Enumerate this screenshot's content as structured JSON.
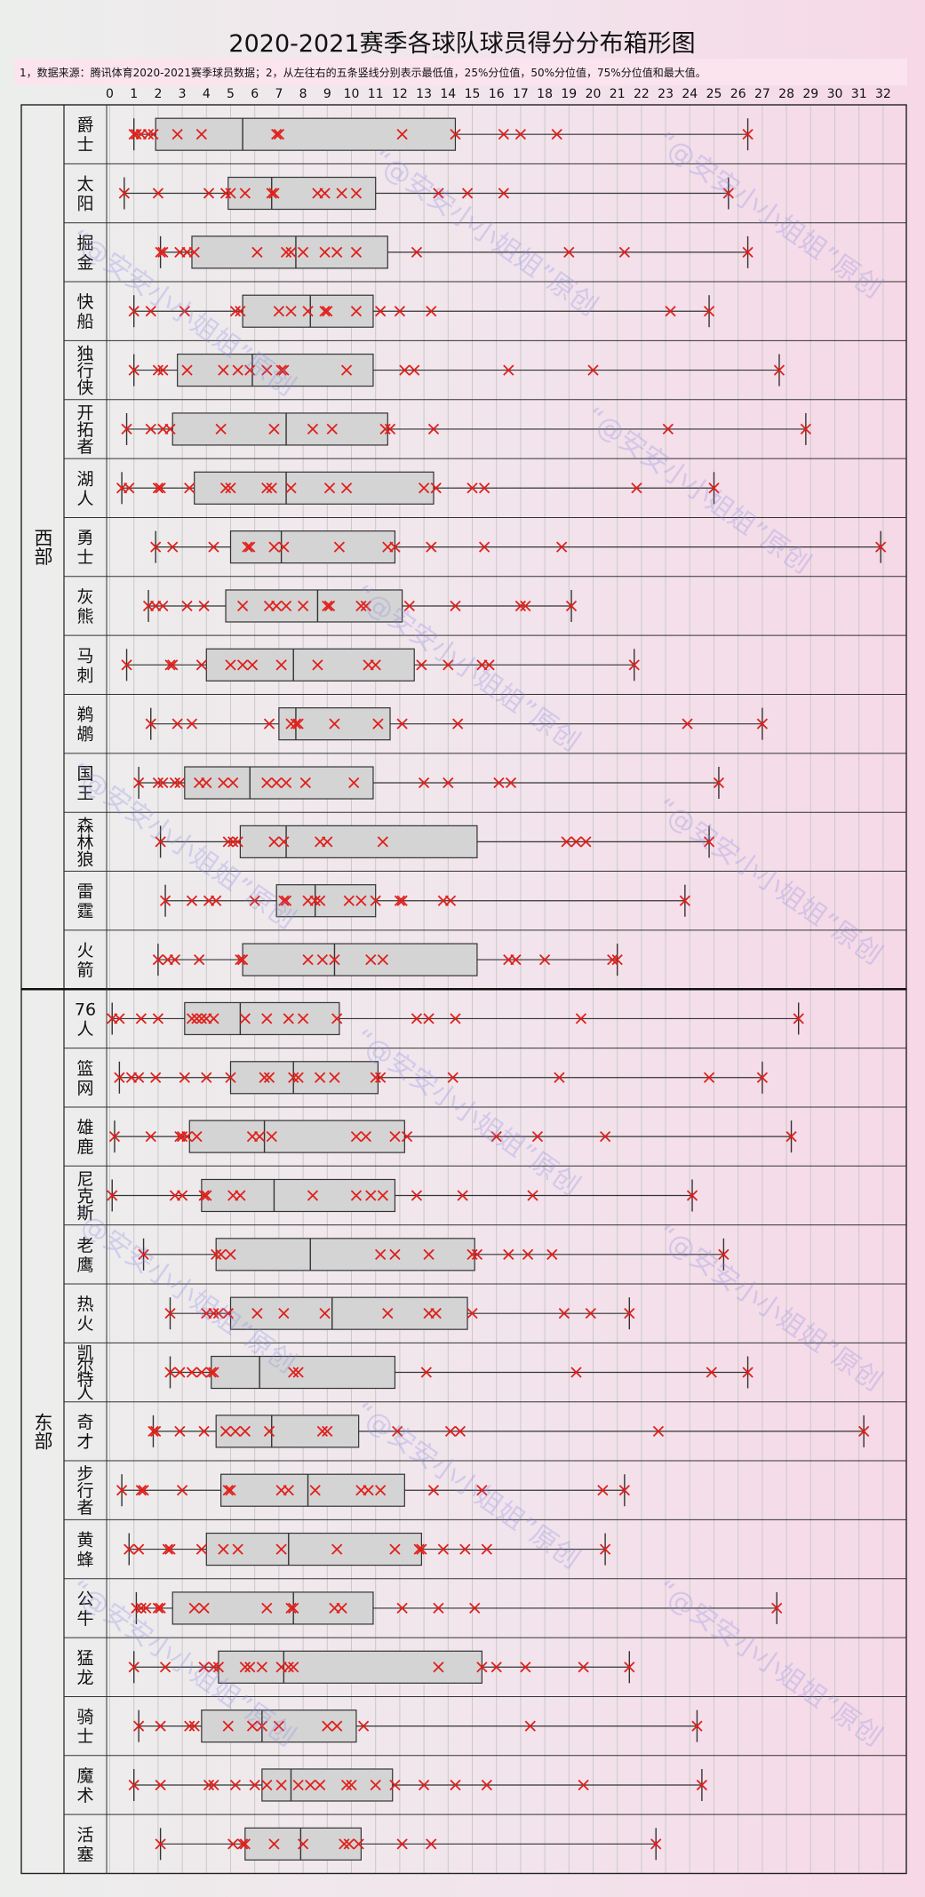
{
  "chart_data": {
    "type": "box",
    "title": "2020-2021赛季各球队球员得分分布箱形图",
    "note": "1，数据来源：腾讯体育2020-2021赛季球员数据；2，从左往右的五条竖线分别表示最低值，25%分位值，50%分位值，75%分位值和最大值。",
    "watermark": "“@安安小小姐姐”原创",
    "xlim": [
      0,
      32
    ],
    "ticks": [
      "0",
      "1",
      "2",
      "3",
      "4",
      "5",
      "6",
      "7",
      "8",
      "9",
      "10",
      "11",
      "12",
      "13",
      "14",
      "15",
      "16",
      "17",
      "18",
      "19",
      "20",
      "21",
      "22",
      "23",
      "24",
      "25",
      "26",
      "27",
      "28",
      "29",
      "30",
      "31",
      "32"
    ],
    "groups": [
      {
        "name": "西部",
        "teams": [
          {
            "name": "爵士",
            "min": 1.0,
            "q1": 1.9,
            "median": 5.5,
            "q3": 14.3,
            "max": 26.4,
            "points": [
              1.0,
              1.1,
              1.3,
              1.6,
              1.8,
              2.8,
              3.8,
              6.9,
              7.0,
              12.1,
              14.3,
              16.3,
              17.0,
              18.5,
              26.4
            ]
          },
          {
            "name": "太阳",
            "min": 0.6,
            "q1": 4.9,
            "median": 6.7,
            "q3": 11.0,
            "max": 25.6,
            "points": [
              0.6,
              2.0,
              4.1,
              4.8,
              5.0,
              5.6,
              6.7,
              6.8,
              8.6,
              8.9,
              9.6,
              10.2,
              13.6,
              14.8,
              16.3,
              25.6
            ]
          },
          {
            "name": "掘金",
            "min": 2.1,
            "q1": 3.4,
            "median": 7.7,
            "q3": 11.5,
            "max": 26.4,
            "points": [
              2.1,
              2.2,
              2.9,
              3.2,
              3.5,
              6.1,
              7.3,
              7.5,
              8.0,
              8.9,
              9.4,
              10.2,
              12.7,
              19.0,
              21.3,
              26.4
            ]
          },
          {
            "name": "快船",
            "min": 1.0,
            "q1": 5.5,
            "median": 8.3,
            "q3": 10.9,
            "max": 24.8,
            "points": [
              1.0,
              1.7,
              3.1,
              5.2,
              5.4,
              7.0,
              7.5,
              8.2,
              8.9,
              9.0,
              10.2,
              11.2,
              12.0,
              13.3,
              23.2,
              24.8
            ]
          },
          {
            "name": "独行侠",
            "min": 1.0,
            "q1": 2.8,
            "median": 5.9,
            "q3": 10.9,
            "max": 27.7,
            "points": [
              1.0,
              2.0,
              2.2,
              3.2,
              4.7,
              5.3,
              5.8,
              6.5,
              7.1,
              7.2,
              9.8,
              12.2,
              12.6,
              16.5,
              20.0,
              27.7
            ]
          },
          {
            "name": "开拓者",
            "min": 0.7,
            "q1": 2.6,
            "median": 7.3,
            "q3": 11.5,
            "max": 28.8,
            "points": [
              0.7,
              1.7,
              2.2,
              2.5,
              4.6,
              6.8,
              8.4,
              9.2,
              11.4,
              11.6,
              13.4,
              23.1,
              28.8
            ]
          },
          {
            "name": "湖人",
            "min": 0.5,
            "q1": 3.5,
            "median": 7.3,
            "q3": 13.4,
            "max": 25.0,
            "points": [
              0.5,
              0.8,
              2.0,
              2.1,
              3.3,
              4.8,
              5.0,
              6.5,
              6.7,
              7.5,
              9.1,
              9.8,
              13.0,
              13.5,
              15.0,
              15.5,
              21.8,
              25.0
            ]
          },
          {
            "name": "勇士",
            "min": 1.9,
            "q1": 5.0,
            "median": 7.1,
            "q3": 11.8,
            "max": 31.9,
            "points": [
              1.9,
              2.6,
              4.3,
              5.7,
              5.8,
              6.8,
              7.2,
              9.5,
              11.5,
              11.8,
              13.3,
              15.5,
              18.7,
              31.9
            ]
          },
          {
            "name": "灰熊",
            "min": 1.6,
            "q1": 4.8,
            "median": 8.6,
            "q3": 12.1,
            "max": 19.1,
            "points": [
              1.6,
              1.9,
              2.2,
              3.2,
              3.9,
              5.5,
              6.6,
              6.9,
              7.3,
              8.0,
              9.0,
              9.1,
              10.4,
              10.6,
              12.4,
              14.3,
              17.0,
              17.2,
              19.1
            ]
          },
          {
            "name": "马刺",
            "min": 0.7,
            "q1": 4.0,
            "median": 7.6,
            "q3": 12.6,
            "max": 21.7,
            "points": [
              0.7,
              2.5,
              2.6,
              3.8,
              5.0,
              5.5,
              5.9,
              7.1,
              8.6,
              10.7,
              11.0,
              12.9,
              14.0,
              15.4,
              15.7,
              21.7
            ]
          },
          {
            "name": "鹈鹕",
            "min": 1.7,
            "q1": 7.0,
            "median": 7.7,
            "q3": 11.6,
            "max": 27.0,
            "points": [
              1.7,
              2.8,
              3.4,
              6.6,
              7.5,
              7.7,
              7.8,
              9.3,
              11.1,
              12.1,
              14.4,
              23.9,
              27.0
            ]
          },
          {
            "name": "国王",
            "min": 1.2,
            "q1": 3.1,
            "median": 5.8,
            "q3": 10.9,
            "max": 25.2,
            "points": [
              1.2,
              2.0,
              2.2,
              2.7,
              2.9,
              3.7,
              4.0,
              4.7,
              5.1,
              6.5,
              6.9,
              7.3,
              8.1,
              10.1,
              13.0,
              14.0,
              16.1,
              16.6,
              25.2
            ]
          },
          {
            "name": "森林狼",
            "min": 2.1,
            "q1": 5.4,
            "median": 7.3,
            "q3": 15.2,
            "max": 24.8,
            "points": [
              2.1,
              4.9,
              5.1,
              5.3,
              6.8,
              7.2,
              8.7,
              9.0,
              11.3,
              18.9,
              19.3,
              19.7,
              24.8
            ]
          },
          {
            "name": "雷霆",
            "min": 2.3,
            "q1": 6.9,
            "median": 8.5,
            "q3": 11.0,
            "max": 23.8,
            "points": [
              2.3,
              3.4,
              4.1,
              4.4,
              6.0,
              7.2,
              7.3,
              8.2,
              8.5,
              8.7,
              9.9,
              10.4,
              11.0,
              12.0,
              12.1,
              13.8,
              14.1,
              23.8
            ]
          },
          {
            "name": "火箭",
            "min": 2.0,
            "q1": 5.5,
            "median": 9.3,
            "q3": 15.2,
            "max": 21.0,
            "points": [
              2.0,
              2.4,
              2.7,
              3.7,
              5.4,
              5.5,
              8.2,
              8.8,
              9.3,
              10.8,
              11.3,
              16.5,
              16.8,
              18.0,
              20.8,
              21.0
            ]
          }
        ]
      },
      {
        "name": "东部",
        "teams": [
          {
            "name": "76人",
            "min": 0.1,
            "q1": 3.1,
            "median": 5.4,
            "q3": 9.5,
            "max": 28.5,
            "points": [
              0.1,
              0.4,
              1.3,
              2.0,
              3.4,
              3.6,
              3.8,
              4.0,
              4.3,
              5.6,
              6.5,
              7.4,
              8.0,
              9.4,
              12.7,
              13.2,
              14.3,
              19.5,
              28.5
            ]
          },
          {
            "name": "篮网",
            "min": 0.4,
            "q1": 5.0,
            "median": 7.6,
            "q3": 11.1,
            "max": 27.0,
            "points": [
              0.4,
              0.9,
              1.2,
              1.9,
              3.1,
              4.0,
              5.0,
              6.4,
              6.6,
              7.6,
              7.8,
              8.7,
              9.3,
              11.0,
              11.2,
              14.2,
              18.6,
              24.8,
              27.0
            ]
          },
          {
            "name": "雄鹿",
            "min": 0.2,
            "q1": 3.3,
            "median": 6.4,
            "q3": 12.2,
            "max": 28.2,
            "points": [
              0.2,
              1.7,
              2.9,
              3.0,
              3.2,
              3.6,
              5.9,
              6.2,
              6.7,
              10.2,
              10.6,
              11.8,
              12.3,
              16.0,
              17.7,
              20.5,
              28.2
            ]
          },
          {
            "name": "尼克斯",
            "min": 0.1,
            "q1": 3.8,
            "median": 6.8,
            "q3": 11.8,
            "max": 24.1,
            "points": [
              0.1,
              2.7,
              3.0,
              3.9,
              4.0,
              5.1,
              5.4,
              8.4,
              10.2,
              10.8,
              11.3,
              12.7,
              14.6,
              17.5,
              24.1
            ]
          },
          {
            "name": "老鹰",
            "min": 1.4,
            "q1": 4.4,
            "median": 8.3,
            "q3": 15.1,
            "max": 25.4,
            "points": [
              1.4,
              4.4,
              4.6,
              5.0,
              11.2,
              11.8,
              13.2,
              15.0,
              15.2,
              16.5,
              17.3,
              18.3,
              25.4
            ]
          },
          {
            "name": "热火",
            "min": 2.5,
            "q1": 5.0,
            "median": 9.2,
            "q3": 14.8,
            "max": 21.5,
            "points": [
              2.5,
              4.0,
              4.3,
              4.5,
              4.9,
              6.1,
              7.2,
              8.9,
              11.5,
              13.2,
              13.5,
              15.0,
              18.8,
              19.9,
              21.5
            ]
          },
          {
            "name": "凯尔特人",
            "min": 2.5,
            "q1": 4.2,
            "median": 6.2,
            "q3": 11.8,
            "max": 26.4,
            "points": [
              2.5,
              2.9,
              3.4,
              3.8,
              4.2,
              4.3,
              7.6,
              7.8,
              13.1,
              19.3,
              24.9,
              26.4
            ]
          },
          {
            "name": "奇才",
            "min": 1.8,
            "q1": 4.4,
            "median": 6.7,
            "q3": 10.3,
            "max": 31.2,
            "points": [
              1.8,
              1.9,
              2.9,
              3.9,
              4.8,
              5.2,
              5.6,
              6.6,
              8.8,
              9.0,
              11.9,
              14.1,
              14.5,
              22.7,
              31.2
            ]
          },
          {
            "name": "步行者",
            "min": 0.5,
            "q1": 4.6,
            "median": 8.2,
            "q3": 12.2,
            "max": 21.3,
            "points": [
              0.5,
              1.3,
              1.4,
              3.0,
              4.9,
              5.0,
              7.1,
              7.4,
              8.5,
              10.4,
              10.7,
              11.2,
              13.4,
              15.4,
              20.4,
              21.3
            ]
          },
          {
            "name": "黄蜂",
            "min": 0.8,
            "q1": 4.0,
            "median": 7.4,
            "q3": 12.9,
            "max": 20.5,
            "points": [
              0.8,
              1.2,
              2.4,
              2.5,
              3.8,
              4.7,
              5.3,
              7.1,
              9.4,
              11.8,
              12.8,
              12.9,
              13.8,
              14.7,
              15.6,
              20.5
            ]
          },
          {
            "name": "公牛",
            "min": 1.1,
            "q1": 2.6,
            "median": 7.6,
            "q3": 10.9,
            "max": 27.6,
            "points": [
              1.1,
              1.3,
              1.5,
              2.0,
              2.1,
              3.5,
              3.9,
              6.5,
              7.5,
              7.6,
              9.3,
              9.6,
              12.1,
              13.6,
              15.1,
              27.6
            ]
          },
          {
            "name": "猛龙",
            "min": 1.0,
            "q1": 4.5,
            "median": 7.2,
            "q3": 15.4,
            "max": 21.5,
            "points": [
              1.0,
              2.3,
              3.9,
              4.3,
              4.5,
              5.6,
              5.8,
              6.3,
              7.1,
              7.4,
              7.6,
              13.6,
              15.4,
              16.0,
              17.2,
              19.6,
              21.5
            ]
          },
          {
            "name": "骑士",
            "min": 1.2,
            "q1": 3.8,
            "median": 6.3,
            "q3": 10.2,
            "max": 24.3,
            "points": [
              1.2,
              2.1,
              3.3,
              3.5,
              4.9,
              5.9,
              6.3,
              7.0,
              9.0,
              9.4,
              10.5,
              17.4,
              24.3
            ]
          },
          {
            "name": "魔术",
            "min": 1.0,
            "q1": 6.3,
            "median": 7.5,
            "q3": 11.7,
            "max": 24.5,
            "points": [
              1.0,
              2.1,
              4.1,
              4.3,
              5.2,
              6.0,
              6.5,
              7.1,
              7.8,
              8.3,
              8.7,
              9.8,
              10.0,
              11.0,
              11.8,
              13.0,
              14.3,
              15.6,
              19.6,
              24.5
            ]
          },
          {
            "name": "活塞",
            "min": 2.1,
            "q1": 5.6,
            "median": 7.9,
            "q3": 10.4,
            "max": 22.6,
            "points": [
              2.1,
              5.1,
              5.5,
              5.6,
              6.8,
              8.0,
              9.7,
              9.9,
              10.3,
              12.1,
              13.3,
              22.6
            ]
          }
        ]
      }
    ]
  }
}
